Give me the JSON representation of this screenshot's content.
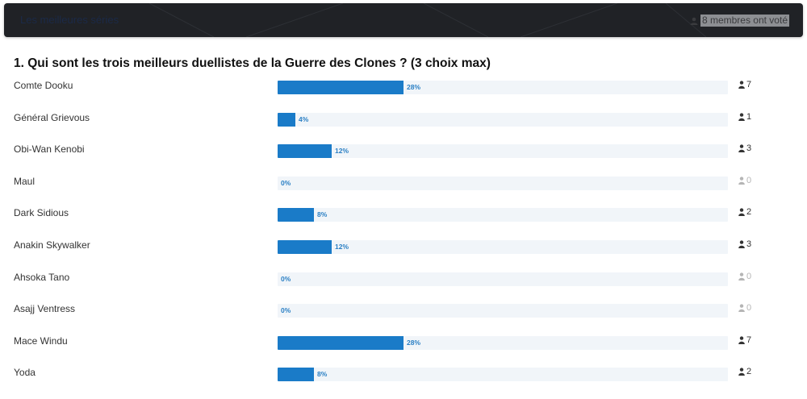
{
  "header": {
    "link_label": "Les meilleures séries",
    "votes_text": "8 membres ont voté",
    "background_color": "#202226"
  },
  "poll": {
    "question": "1. Qui sont les trois meilleurs duellistes de la Guerre des Clones ? (3 choix max)",
    "bar_color": "#1a7bc8",
    "track_color": "#f1f5f9",
    "options": [
      {
        "label": "Comte Dooku",
        "percent_label": "28%",
        "percent": 28,
        "count": "7"
      },
      {
        "label": "Général Grievous",
        "percent_label": "4%",
        "percent": 4,
        "count": "1"
      },
      {
        "label": "Obi-Wan Kenobi",
        "percent_label": "12%",
        "percent": 12,
        "count": "3"
      },
      {
        "label": "Maul",
        "percent_label": "0%",
        "percent": 0,
        "count": "0"
      },
      {
        "label": "Dark Sidious",
        "percent_label": "8%",
        "percent": 8,
        "count": "2"
      },
      {
        "label": "Anakin Skywalker",
        "percent_label": "12%",
        "percent": 12,
        "count": "3"
      },
      {
        "label": "Ahsoka Tano",
        "percent_label": "0%",
        "percent": 0,
        "count": "0"
      },
      {
        "label": "Asajj Ventress",
        "percent_label": "0%",
        "percent": 0,
        "count": "0"
      },
      {
        "label": "Mace Windu",
        "percent_label": "28%",
        "percent": 28,
        "count": "7"
      },
      {
        "label": "Yoda",
        "percent_label": "8%",
        "percent": 8,
        "count": "2"
      }
    ]
  }
}
